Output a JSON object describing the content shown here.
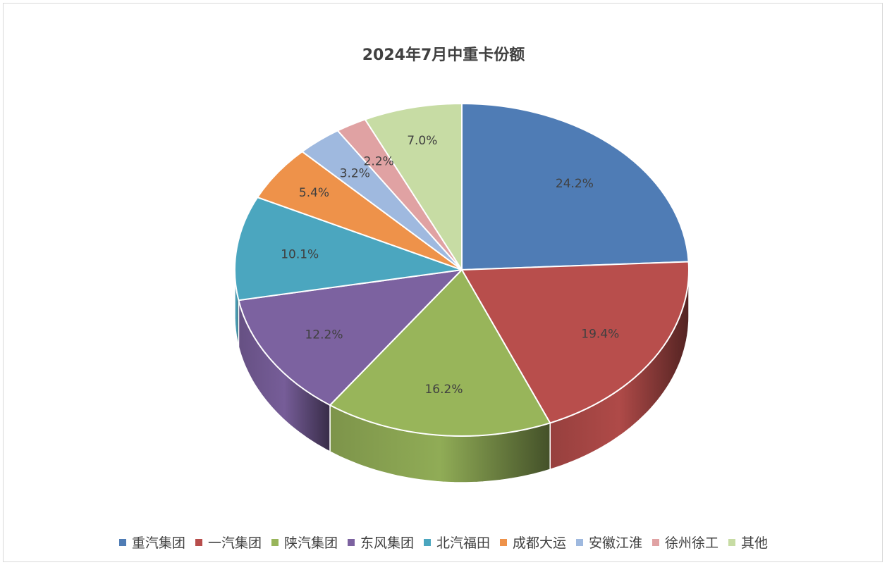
{
  "chart_data": {
    "type": "pie",
    "title": "2024年7月中重卡份额",
    "categories": [
      "重汽集团",
      "一汽集团",
      "陕汽集团",
      "东风集团",
      "北汽福田",
      "成都大运",
      "安徽江淮",
      "徐州徐工",
      "其他"
    ],
    "values": [
      24.2,
      19.4,
      16.2,
      12.2,
      10.1,
      5.4,
      3.2,
      2.2,
      7.0
    ],
    "data_labels": [
      "24.2%",
      "19.4%",
      "16.2%",
      "12.2%",
      "10.1%",
      "5.4%",
      "3.2%",
      "2.2%",
      "7.0%"
    ],
    "colors": [
      "#4F7CB5",
      "#B84E4C",
      "#98B55A",
      "#7C62A0",
      "#4BA6BF",
      "#EE924A",
      "#9FB9DF",
      "#E0A2A3",
      "#C7DCA4"
    ],
    "legend_position": "bottom"
  }
}
